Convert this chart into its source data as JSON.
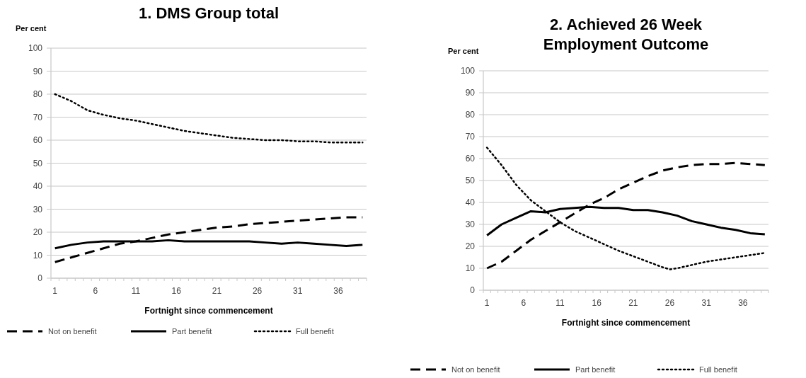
{
  "chart_data": [
    {
      "type": "line",
      "title": "1. DMS Group total",
      "ylabel": "Per cent",
      "xlabel": "Fortnight since commencement",
      "x": [
        1,
        3,
        5,
        7,
        9,
        11,
        13,
        15,
        17,
        19,
        21,
        23,
        25,
        27,
        29,
        31,
        33,
        35,
        37,
        39
      ],
      "xlim": [
        0.5,
        39.5
      ],
      "xticks": [
        1,
        6,
        11,
        16,
        21,
        26,
        31,
        36
      ],
      "ylim": [
        0,
        100
      ],
      "yticks": [
        0,
        10,
        20,
        30,
        40,
        50,
        60,
        70,
        80,
        90,
        100
      ],
      "grid": "y",
      "legend": "bottom",
      "series": [
        {
          "name": "Not on benefit",
          "color": "#000000",
          "line_style": "dashed",
          "values": [
            7,
            9,
            11,
            13,
            15,
            16,
            17.5,
            19,
            20,
            21,
            22,
            22.5,
            23.5,
            24,
            24.5,
            25,
            25.5,
            26,
            26.5,
            26.5
          ]
        },
        {
          "name": "Part benefit",
          "color": "#000000",
          "line_style": "solid",
          "values": [
            13,
            14.5,
            15.5,
            16,
            16,
            16,
            16,
            16.5,
            16,
            16,
            16,
            16,
            16,
            15.5,
            15,
            15.5,
            15,
            14.5,
            14,
            14.5
          ]
        },
        {
          "name": "Full benefit",
          "color": "#000000",
          "line_style": "dotted",
          "values": [
            80,
            77,
            73,
            71,
            69.5,
            68.5,
            67,
            65.5,
            64,
            63,
            62,
            61,
            60.5,
            60,
            60,
            59.5,
            59.5,
            59,
            59,
            59
          ]
        }
      ]
    },
    {
      "type": "line",
      "title": "2. Achieved 26 Week Employment Outcome",
      "ylabel": "Per cent",
      "xlabel": "Fortnight since commencement",
      "x": [
        1,
        3,
        5,
        7,
        9,
        11,
        13,
        15,
        17,
        19,
        21,
        23,
        25,
        27,
        29,
        31,
        33,
        35,
        37,
        39
      ],
      "xlim": [
        0.5,
        39.5
      ],
      "xticks": [
        1,
        6,
        11,
        16,
        21,
        26,
        31,
        36
      ],
      "ylim": [
        0,
        100
      ],
      "yticks": [
        0,
        10,
        20,
        30,
        40,
        50,
        60,
        70,
        80,
        90,
        100
      ],
      "grid": "y",
      "legend": "bottom",
      "series": [
        {
          "name": "Not on benefit",
          "color": "#000000",
          "line_style": "dashed",
          "values": [
            10,
            13,
            18,
            23,
            27,
            31,
            35,
            39,
            42,
            46,
            49,
            52,
            54.5,
            56,
            57,
            57.5,
            57.5,
            58,
            57.5,
            57
          ]
        },
        {
          "name": "Part benefit",
          "color": "#000000",
          "line_style": "solid",
          "values": [
            25,
            30,
            33,
            36,
            35.5,
            37,
            37.5,
            38,
            37.5,
            37.5,
            36.5,
            36.5,
            35.5,
            34,
            31.5,
            30,
            28.5,
            27.5,
            26,
            25.5
          ]
        },
        {
          "name": "Full benefit",
          "color": "#000000",
          "line_style": "dotted",
          "x": [
            1,
            3,
            5,
            7,
            9,
            11,
            13,
            15,
            17,
            19,
            21,
            23,
            25,
            26,
            27,
            29,
            31,
            33,
            35,
            37,
            39
          ],
          "values": [
            65,
            57,
            48,
            41,
            36,
            31,
            27,
            24,
            21,
            18,
            15.5,
            13,
            10.5,
            9.5,
            10,
            11.5,
            13,
            14,
            15,
            16,
            17
          ]
        }
      ]
    }
  ]
}
